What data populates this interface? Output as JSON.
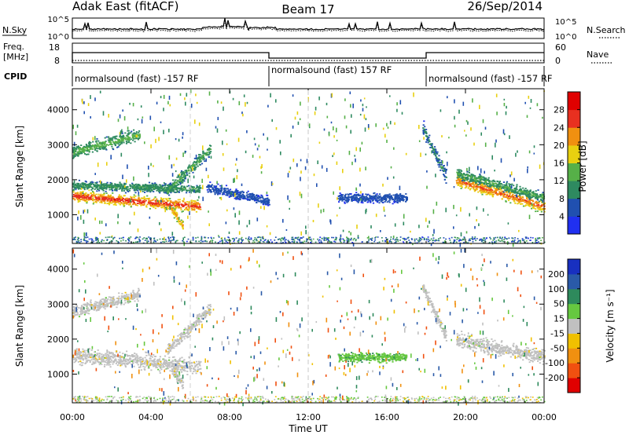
{
  "header": {
    "station": "Adak East (fitACF)",
    "beam": "Beam 17",
    "date": "26/Sep/2014"
  },
  "noise_panel": {
    "left_label": "N.Sky",
    "right_label": "N.Search",
    "left_ticks": [
      "10^5",
      "10^0"
    ],
    "right_ticks": [
      "10^5",
      "10^0"
    ]
  },
  "freq_panel": {
    "left_label": "Freq.",
    "left_unit": "[MHz]",
    "right_label": "Nave",
    "left_ticks": [
      "18",
      "8"
    ],
    "right_ticks": [
      "60",
      "0"
    ]
  },
  "cpid": {
    "label": "CPID",
    "segments": [
      {
        "start": 0,
        "end": 10,
        "text": "normalsound (fast) -157 RF"
      },
      {
        "start": 10,
        "end": 18,
        "text": "normalsound (fast) 157 RF"
      },
      {
        "start": 18,
        "end": 24,
        "text": "normalsound (fast) -157 RF"
      }
    ]
  },
  "time_axis": {
    "label": "Time UT",
    "ticks": [
      "00:00",
      "04:00",
      "08:00",
      "12:00",
      "16:00",
      "20:00",
      "00:00"
    ]
  },
  "range_axis": {
    "label": "Slant Range [km]",
    "ticks": [
      "1000",
      "2000",
      "3000",
      "4000"
    ]
  },
  "power_scale": {
    "title": "Power [dB]",
    "labels": [
      "4",
      "8",
      "12",
      "16",
      "20",
      "24",
      "28"
    ],
    "colors": [
      "#2030f0",
      "#2050b0",
      "#2e8a60",
      "#56b048",
      "#e8d010",
      "#f09010",
      "#e83020",
      "#e00000"
    ]
  },
  "velocity_scale": {
    "title": "Velocity [m s⁻¹]",
    "labels": [
      "200",
      "100",
      "50",
      "15",
      "-15",
      "-50",
      "-100",
      "-200"
    ],
    "colors": [
      "#1830c0",
      "#2a5aa8",
      "#2e8a5c",
      "#66c840",
      "#c0c0c0",
      "#f0c000",
      "#f09010",
      "#f05010",
      "#e00000"
    ]
  },
  "chart_data": {
    "type": "heatmap",
    "x_range_hours": [
      0,
      24
    ],
    "y_range_km": [
      180,
      4600
    ],
    "power_features": [
      {
        "t0": 0.0,
        "t1": 6.5,
        "range_start": 1550,
        "range_end": 1250,
        "width_km": 220,
        "power_db": 27
      },
      {
        "t0": 0.0,
        "t1": 6.5,
        "range_start": 1850,
        "range_end": 1750,
        "width_km": 180,
        "power_db": 12
      },
      {
        "t0": 0.0,
        "t1": 3.4,
        "range_start": 2800,
        "range_end": 3300,
        "width_km": 250,
        "power_db": 14
      },
      {
        "t0": 4.8,
        "t1": 7.0,
        "range_start": 1700,
        "range_end": 2900,
        "width_km": 250,
        "power_db": 13
      },
      {
        "t0": 5.0,
        "t1": 5.6,
        "range_start": 1200,
        "range_end": 700,
        "width_km": 200,
        "power_db": 22
      },
      {
        "t0": 6.8,
        "t1": 10.0,
        "range_start": 1800,
        "range_end": 1400,
        "width_km": 200,
        "power_db": 6
      },
      {
        "t0": 13.5,
        "t1": 17.0,
        "range_start": 1500,
        "range_end": 1500,
        "width_km": 200,
        "power_db": 6
      },
      {
        "t0": 17.8,
        "t1": 19.0,
        "range_start": 3500,
        "range_end": 2100,
        "width_km": 280,
        "power_db": 9
      },
      {
        "t0": 19.5,
        "t1": 24.0,
        "range_start": 2000,
        "range_end": 1250,
        "width_km": 250,
        "power_db": 25
      },
      {
        "t0": 19.5,
        "t1": 24.0,
        "range_start": 2200,
        "range_end": 1500,
        "width_km": 200,
        "power_db": 13
      }
    ],
    "velocity_features": [
      {
        "t0": 0.0,
        "t1": 6.5,
        "range_start": 1550,
        "range_end": 1250,
        "width_km": 320,
        "velocity": 0
      },
      {
        "t0": 0.0,
        "t1": 3.4,
        "range_start": 2800,
        "range_end": 3300,
        "width_km": 250,
        "velocity": 0
      },
      {
        "t0": 4.8,
        "t1": 7.0,
        "range_start": 1700,
        "range_end": 2900,
        "width_km": 250,
        "velocity": 0
      },
      {
        "t0": 5.0,
        "t1": 5.6,
        "range_start": 1200,
        "range_end": 700,
        "width_km": 200,
        "velocity": 0
      },
      {
        "t0": 13.5,
        "t1": 17.0,
        "range_start": 1500,
        "range_end": 1500,
        "width_km": 180,
        "velocity": 40
      },
      {
        "t0": 17.8,
        "t1": 19.0,
        "range_start": 3500,
        "range_end": 2100,
        "width_km": 250,
        "velocity": 0
      },
      {
        "t0": 19.5,
        "t1": 24.0,
        "range_start": 2000,
        "range_end": 1500,
        "width_km": 300,
        "velocity": 0
      }
    ]
  }
}
